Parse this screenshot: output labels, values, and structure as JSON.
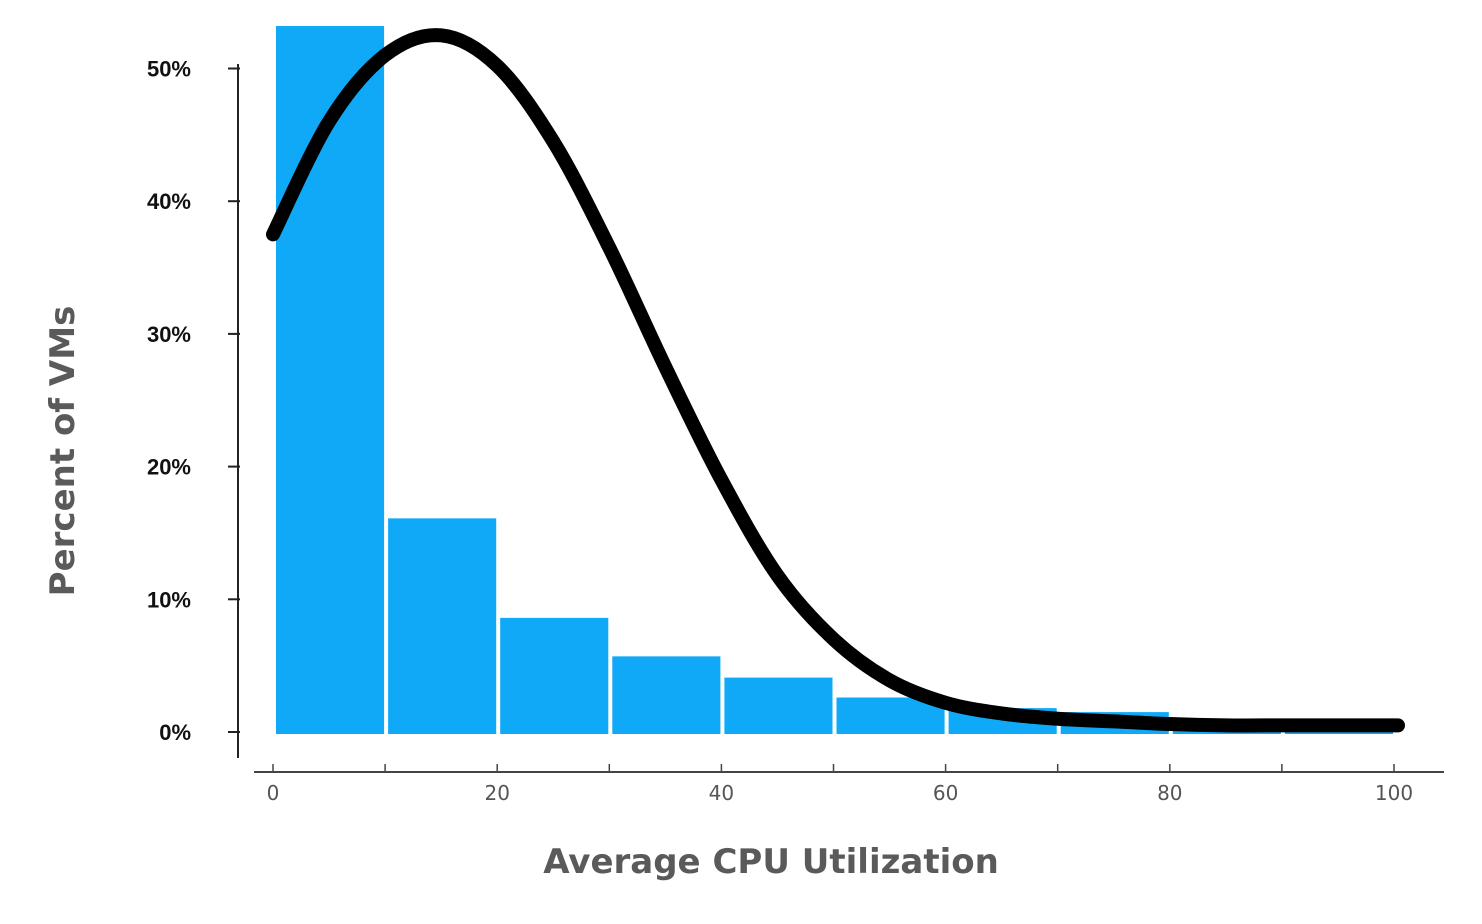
{
  "chart_data": {
    "type": "bar",
    "xlabel": "Average CPU Utilization",
    "ylabel": "Percent of VMs",
    "bins": [
      {
        "x0": 0,
        "x1": 10,
        "value": 53.2
      },
      {
        "x0": 10,
        "x1": 20,
        "value": 16.1
      },
      {
        "x0": 20,
        "x1": 30,
        "value": 8.6
      },
      {
        "x0": 30,
        "x1": 40,
        "value": 5.7
      },
      {
        "x0": 40,
        "x1": 50,
        "value": 4.1
      },
      {
        "x0": 50,
        "x1": 60,
        "value": 2.6
      },
      {
        "x0": 60,
        "x1": 70,
        "value": 1.8
      },
      {
        "x0": 70,
        "x1": 80,
        "value": 1.5
      },
      {
        "x0": 80,
        "x1": 90,
        "value": 0.6
      },
      {
        "x0": 90,
        "x1": 100,
        "value": 0.3
      }
    ],
    "curve": {
      "x": [
        0,
        5,
        10,
        15,
        20,
        25,
        30,
        35,
        40,
        45,
        50,
        55,
        60,
        65,
        70,
        75,
        80,
        85,
        90,
        95,
        100
      ],
      "y": [
        37.5,
        46.0,
        51.0,
        52.5,
        50.2,
        44.5,
        36.5,
        27.5,
        19.0,
        11.8,
        7.0,
        3.9,
        2.2,
        1.4,
        1.0,
        0.8,
        0.6,
        0.5,
        0.5,
        0.5,
        0.5
      ]
    },
    "xticks": [
      "0",
      "20",
      "40",
      "60",
      "80",
      "100"
    ],
    "yticks": [
      "0%",
      "10%",
      "20%",
      "30%",
      "40%",
      "50%"
    ],
    "xlim": [
      0,
      100
    ],
    "ylim": [
      0,
      50
    ],
    "grid": false,
    "colors": {
      "bars": "#0fa9f8",
      "curve": "#000000",
      "axis": "#444444"
    }
  }
}
